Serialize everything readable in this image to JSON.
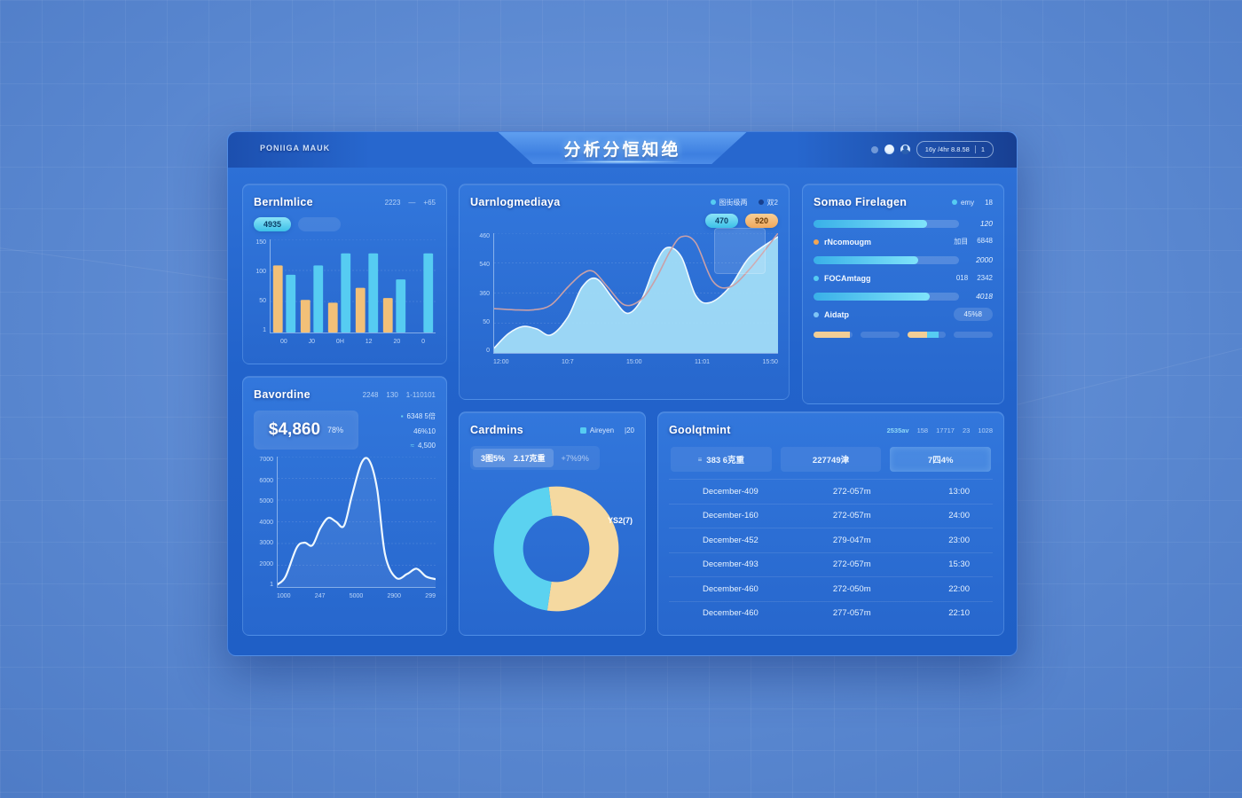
{
  "header": {
    "logo": "PONIIGA MAUK",
    "title": "分析分恒知绝",
    "time_chip": "16y /4hr 8.8.58",
    "chip_suffix": "1"
  },
  "panels": {
    "performance": {
      "title": "Bernlmlice",
      "meta": [
        "2223",
        "—",
        "+65"
      ],
      "pills": [
        {
          "label": "4935",
          "style": "cyan"
        },
        {
          "label": "",
          "style": "ghost"
        }
      ]
    },
    "revenue": {
      "title": "Bavordine",
      "meta": [
        "2248",
        "130",
        "1-110101"
      ],
      "stat": {
        "value": "$4,860",
        "sub": "78%"
      },
      "legend_items": [
        {
          "icon": "square-icon",
          "text": "6348 5倍"
        },
        {
          "icon": "none",
          "text": "46%10"
        },
        {
          "icon": "wave-icon",
          "text": "4,500"
        }
      ]
    },
    "traffic": {
      "title": "Uarnlogmediaya",
      "legend": [
        {
          "color": "#56CCF2",
          "label": "图街级两"
        },
        {
          "color": "#17408f",
          "label": "双2"
        }
      ],
      "pills": [
        {
          "label": "470",
          "style": "cyan"
        },
        {
          "label": "920",
          "style": "orange"
        }
      ]
    },
    "donut": {
      "title": "Cardmins",
      "legend_label": "Aireyen",
      "legend_count": "|20",
      "seg_a": "3图5%",
      "seg_b": "2.17克重",
      "seg_inactive": "+7%9%",
      "slice_label": "YS2(7)"
    },
    "service": {
      "title": "Somao Firelagen",
      "legend_label": "emy",
      "legend_count": "18",
      "items": [
        {
          "type": "bar",
          "pct": 78,
          "value": "120"
        },
        {
          "type": "label",
          "dot": "#F2A654",
          "name": "rNcomougm",
          "v1": "加目",
          "v2": "6848"
        },
        {
          "type": "bar",
          "pct": 72,
          "value": "2000"
        },
        {
          "type": "label",
          "dot": "#56CCF2",
          "name": "FOCAmtagg",
          "v1": "018",
          "v2": "2342"
        },
        {
          "type": "bar",
          "pct": 80,
          "value": "4018"
        },
        {
          "type": "label",
          "dot": "#7fc4f5",
          "name": "Aidatp",
          "pill": "45%8"
        }
      ],
      "mini_bars": [
        {
          "segments": [
            {
              "color": "#F2CE96",
              "pct": 94
            }
          ]
        },
        {
          "segments": []
        },
        {
          "segments": [
            {
              "color": "#F2CE96",
              "pct": 52
            },
            {
              "color": "#56CCF2",
              "pct": 28
            }
          ]
        },
        {
          "segments": []
        }
      ]
    },
    "table": {
      "title": "Goolqtmint",
      "meta": [
        "2535av",
        "158",
        "17717",
        "23",
        "1028"
      ],
      "headers": [
        "383 6克重",
        "227749津",
        "7四4%"
      ],
      "rows": [
        [
          "December-409",
          "272-057m",
          "13:00"
        ],
        [
          "December-160",
          "272-057m",
          "24:00"
        ],
        [
          "December-452",
          "279-047m",
          "23:00"
        ],
        [
          "December-493",
          "272-057m",
          "15:30"
        ],
        [
          "December-460",
          "272-050m",
          "22:00"
        ],
        [
          "December-460",
          "277-057m",
          "22:10"
        ]
      ]
    }
  },
  "chart_data": [
    {
      "id": "grouped-bars",
      "type": "bar",
      "title": "Bernlmlice",
      "categories": [
        "00",
        "J0",
        "0H",
        "12",
        "20",
        "0"
      ],
      "series": [
        {
          "name": "series-a",
          "color": "#F2C078",
          "values": [
            72,
            35,
            32,
            48,
            37,
            null
          ]
        },
        {
          "name": "series-b",
          "color": "#56CCF2",
          "values": [
            62,
            72,
            85,
            85,
            57,
            85
          ]
        }
      ],
      "yticks": [
        "150",
        "100",
        "50",
        "1"
      ],
      "ylim": [
        0,
        100
      ],
      "grid": true,
      "legend_position": "none"
    },
    {
      "id": "trend-line",
      "type": "line",
      "title": "Bavordine",
      "color": "#eef8ff",
      "x": [
        0,
        0.05,
        0.12,
        0.17,
        0.22,
        0.27,
        0.32,
        0.37,
        0.42,
        0.47,
        0.53,
        0.58,
        0.63,
        0.68,
        0.75,
        0.82,
        0.88,
        0.94,
        1
      ],
      "y": [
        0.02,
        0.08,
        0.3,
        0.34,
        0.32,
        0.45,
        0.53,
        0.5,
        0.47,
        0.7,
        0.95,
        0.97,
        0.75,
        0.25,
        0.07,
        0.1,
        0.14,
        0.08,
        0.06
      ],
      "yticks": [
        "7000",
        "6000",
        "5000",
        "4000",
        "3000",
        "2000",
        "1"
      ],
      "xticks": [
        "1000",
        "247",
        "5000",
        "2900",
        "299"
      ],
      "grid": true
    },
    {
      "id": "traffic-area",
      "type": "area",
      "title": "Uarnlogmediaya",
      "series": [
        {
          "name": "traffic-fill",
          "color": "#A5DFF7",
          "stroke": "#EEF9FF",
          "fill": true,
          "x": [
            0,
            0.05,
            0.1,
            0.15,
            0.2,
            0.26,
            0.31,
            0.36,
            0.42,
            0.47,
            0.52,
            0.57,
            0.61,
            0.66,
            0.71,
            0.76,
            0.83,
            0.9,
            1
          ],
          "y": [
            0.04,
            0.16,
            0.22,
            0.2,
            0.15,
            0.3,
            0.55,
            0.62,
            0.45,
            0.33,
            0.45,
            0.75,
            0.88,
            0.8,
            0.48,
            0.42,
            0.55,
            0.8,
            0.97
          ]
        },
        {
          "name": "compare-line",
          "color": "#C9A0A8",
          "stroke": "#C9A0A8",
          "fill": false,
          "x": [
            0,
            0.07,
            0.14,
            0.2,
            0.26,
            0.31,
            0.35,
            0.4,
            0.46,
            0.52,
            0.57,
            0.62,
            0.66,
            0.71,
            0.77,
            0.83,
            0.9,
            1
          ],
          "y": [
            0.37,
            0.36,
            0.36,
            0.4,
            0.55,
            0.66,
            0.68,
            0.55,
            0.4,
            0.45,
            0.62,
            0.85,
            0.97,
            0.92,
            0.6,
            0.55,
            0.7,
            1.0
          ]
        }
      ],
      "yticks": [
        "460",
        "540",
        "360",
        "50",
        "0"
      ],
      "xticks": [
        "12:00",
        "10:7",
        "15:00",
        "11:01",
        "15:50"
      ],
      "legend": [
        "图街级两",
        "双2"
      ],
      "legend_position": "top-right",
      "grid": true
    },
    {
      "id": "share-donut",
      "type": "pie",
      "title": "Cardmins",
      "donut": true,
      "start_angle": -95,
      "slices": [
        {
          "label": "YS2(7)",
          "value": 54,
          "color": "#F5D9A0"
        },
        {
          "label": "Aireyen",
          "value": 46,
          "color": "#5BD2F0"
        }
      ]
    }
  ]
}
